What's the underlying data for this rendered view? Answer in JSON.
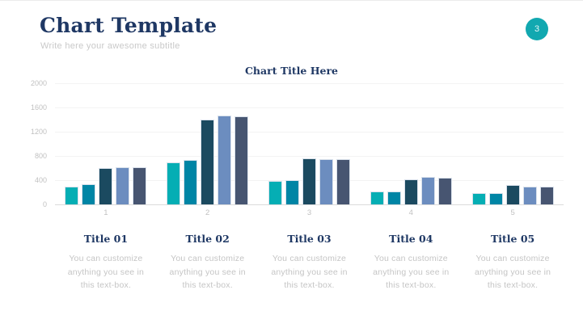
{
  "header": {
    "title": "Chart Template",
    "subtitle": "Write here your awesome subtitle",
    "slide_number": "3"
  },
  "colors": {
    "accent_teal": "#12A8B0",
    "heading_navy": "#1F3864",
    "muted_text": "#C5C5C5",
    "axis_text": "#C1C1C1",
    "gridline": "#F3F3F3",
    "axis_baseline": "#DBDBDB",
    "bar_border": "#D9E1EB"
  },
  "chart_data": {
    "type": "bar",
    "title": "Chart Title Here",
    "categories": [
      "1",
      "2",
      "3",
      "4",
      "5"
    ],
    "series": [
      {
        "color": "#05AEB4",
        "values": [
          300,
          700,
          390,
          220,
          190
        ]
      },
      {
        "color": "#0085A5",
        "values": [
          340,
          730,
          400,
          220,
          190
        ]
      },
      {
        "color": "#1B4A60",
        "values": [
          600,
          1400,
          760,
          420,
          320
        ]
      },
      {
        "color": "#6C8DBF",
        "values": [
          620,
          1470,
          750,
          450,
          290
        ]
      },
      {
        "color": "#475571",
        "values": [
          610,
          1450,
          750,
          440,
          290
        ]
      }
    ],
    "xlabel": "",
    "ylabel": "",
    "ylim": [
      0,
      2000
    ],
    "yticks": [
      0,
      400,
      800,
      1200,
      1600,
      2000
    ],
    "grid": true,
    "legend": "none"
  },
  "captions": [
    {
      "title": "Title 01",
      "body": "You can customize anything you see in this text-box."
    },
    {
      "title": "Title 02",
      "body": "You can customize anything you see in this text-box."
    },
    {
      "title": "Title 03",
      "body": "You can customize anything you see in this text-box."
    },
    {
      "title": "Title 04",
      "body": "You can customize anything you see in this text-box."
    },
    {
      "title": "Title 05",
      "body": "You can customize anything you see in this text-box."
    }
  ]
}
